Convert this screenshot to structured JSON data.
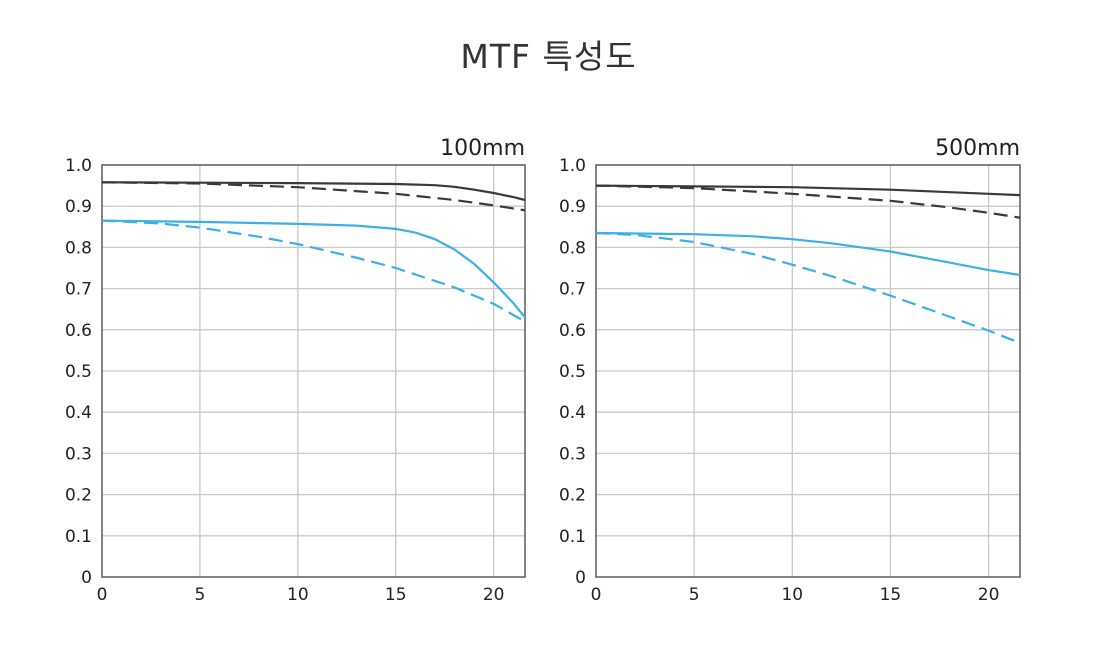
{
  "page": {
    "title": "MTF 특성도"
  },
  "colors": {
    "black_series": "#3a3a3a",
    "blue_series": "#3bb0e6",
    "grid": "#c8c8c8",
    "frame": "#5a5a5a"
  },
  "chart_data": [
    {
      "type": "line",
      "title": "100mm",
      "xlim": [
        0,
        21.6
      ],
      "ylim": [
        0,
        1.0
      ],
      "x_ticks": [
        "0",
        "5",
        "10",
        "15",
        "20"
      ],
      "y_ticks": [
        "1.0",
        "0.9",
        "0.8",
        "0.7",
        "0.6",
        "0.5",
        "0.4",
        "0.3",
        "0.2",
        "0.1",
        "0"
      ],
      "grid": true,
      "series": [
        {
          "color": "black",
          "style": "solid",
          "x": [
            0,
            5,
            10,
            15,
            17,
            18,
            19,
            20,
            21,
            21.6
          ],
          "y": [
            0.958,
            0.957,
            0.956,
            0.954,
            0.951,
            0.947,
            0.94,
            0.932,
            0.922,
            0.915
          ]
        },
        {
          "color": "black",
          "style": "dashed",
          "x": [
            0,
            5,
            10,
            15,
            18,
            20,
            21.6
          ],
          "y": [
            0.958,
            0.955,
            0.946,
            0.93,
            0.915,
            0.902,
            0.89
          ]
        },
        {
          "color": "blue",
          "style": "solid",
          "x": [
            0,
            5,
            10,
            13,
            15,
            16,
            17,
            18,
            19,
            20,
            21,
            21.6
          ],
          "y": [
            0.865,
            0.862,
            0.857,
            0.853,
            0.845,
            0.836,
            0.82,
            0.795,
            0.76,
            0.715,
            0.665,
            0.63
          ]
        },
        {
          "color": "blue",
          "style": "dashed",
          "x": [
            0,
            3,
            5,
            8,
            10,
            13,
            15,
            18,
            20,
            21.6
          ],
          "y": [
            0.865,
            0.858,
            0.848,
            0.826,
            0.808,
            0.775,
            0.75,
            0.703,
            0.663,
            0.62
          ]
        }
      ]
    },
    {
      "type": "line",
      "title": "500mm",
      "xlim": [
        0,
        21.6
      ],
      "ylim": [
        0,
        1.0
      ],
      "x_ticks": [
        "0",
        "5",
        "10",
        "15",
        "20"
      ],
      "y_ticks": [
        "1.0",
        "0.9",
        "0.8",
        "0.7",
        "0.6",
        "0.5",
        "0.4",
        "0.3",
        "0.2",
        "0.1",
        "0"
      ],
      "grid": true,
      "series": [
        {
          "color": "black",
          "style": "solid",
          "x": [
            0,
            5,
            10,
            15,
            20,
            21.6
          ],
          "y": [
            0.95,
            0.948,
            0.946,
            0.94,
            0.93,
            0.927
          ]
        },
        {
          "color": "black",
          "style": "dashed",
          "x": [
            0,
            5,
            10,
            15,
            18,
            20,
            21.6
          ],
          "y": [
            0.95,
            0.944,
            0.93,
            0.913,
            0.897,
            0.884,
            0.872
          ]
        },
        {
          "color": "blue",
          "style": "solid",
          "x": [
            0,
            5,
            8,
            10,
            12,
            15,
            18,
            20,
            21.6
          ],
          "y": [
            0.835,
            0.832,
            0.827,
            0.82,
            0.81,
            0.79,
            0.763,
            0.745,
            0.733
          ]
        },
        {
          "color": "blue",
          "style": "dashed",
          "x": [
            0,
            2,
            5,
            8,
            10,
            12,
            15,
            18,
            20,
            21.6
          ],
          "y": [
            0.835,
            0.83,
            0.813,
            0.784,
            0.758,
            0.73,
            0.683,
            0.632,
            0.598,
            0.568
          ]
        }
      ]
    }
  ]
}
